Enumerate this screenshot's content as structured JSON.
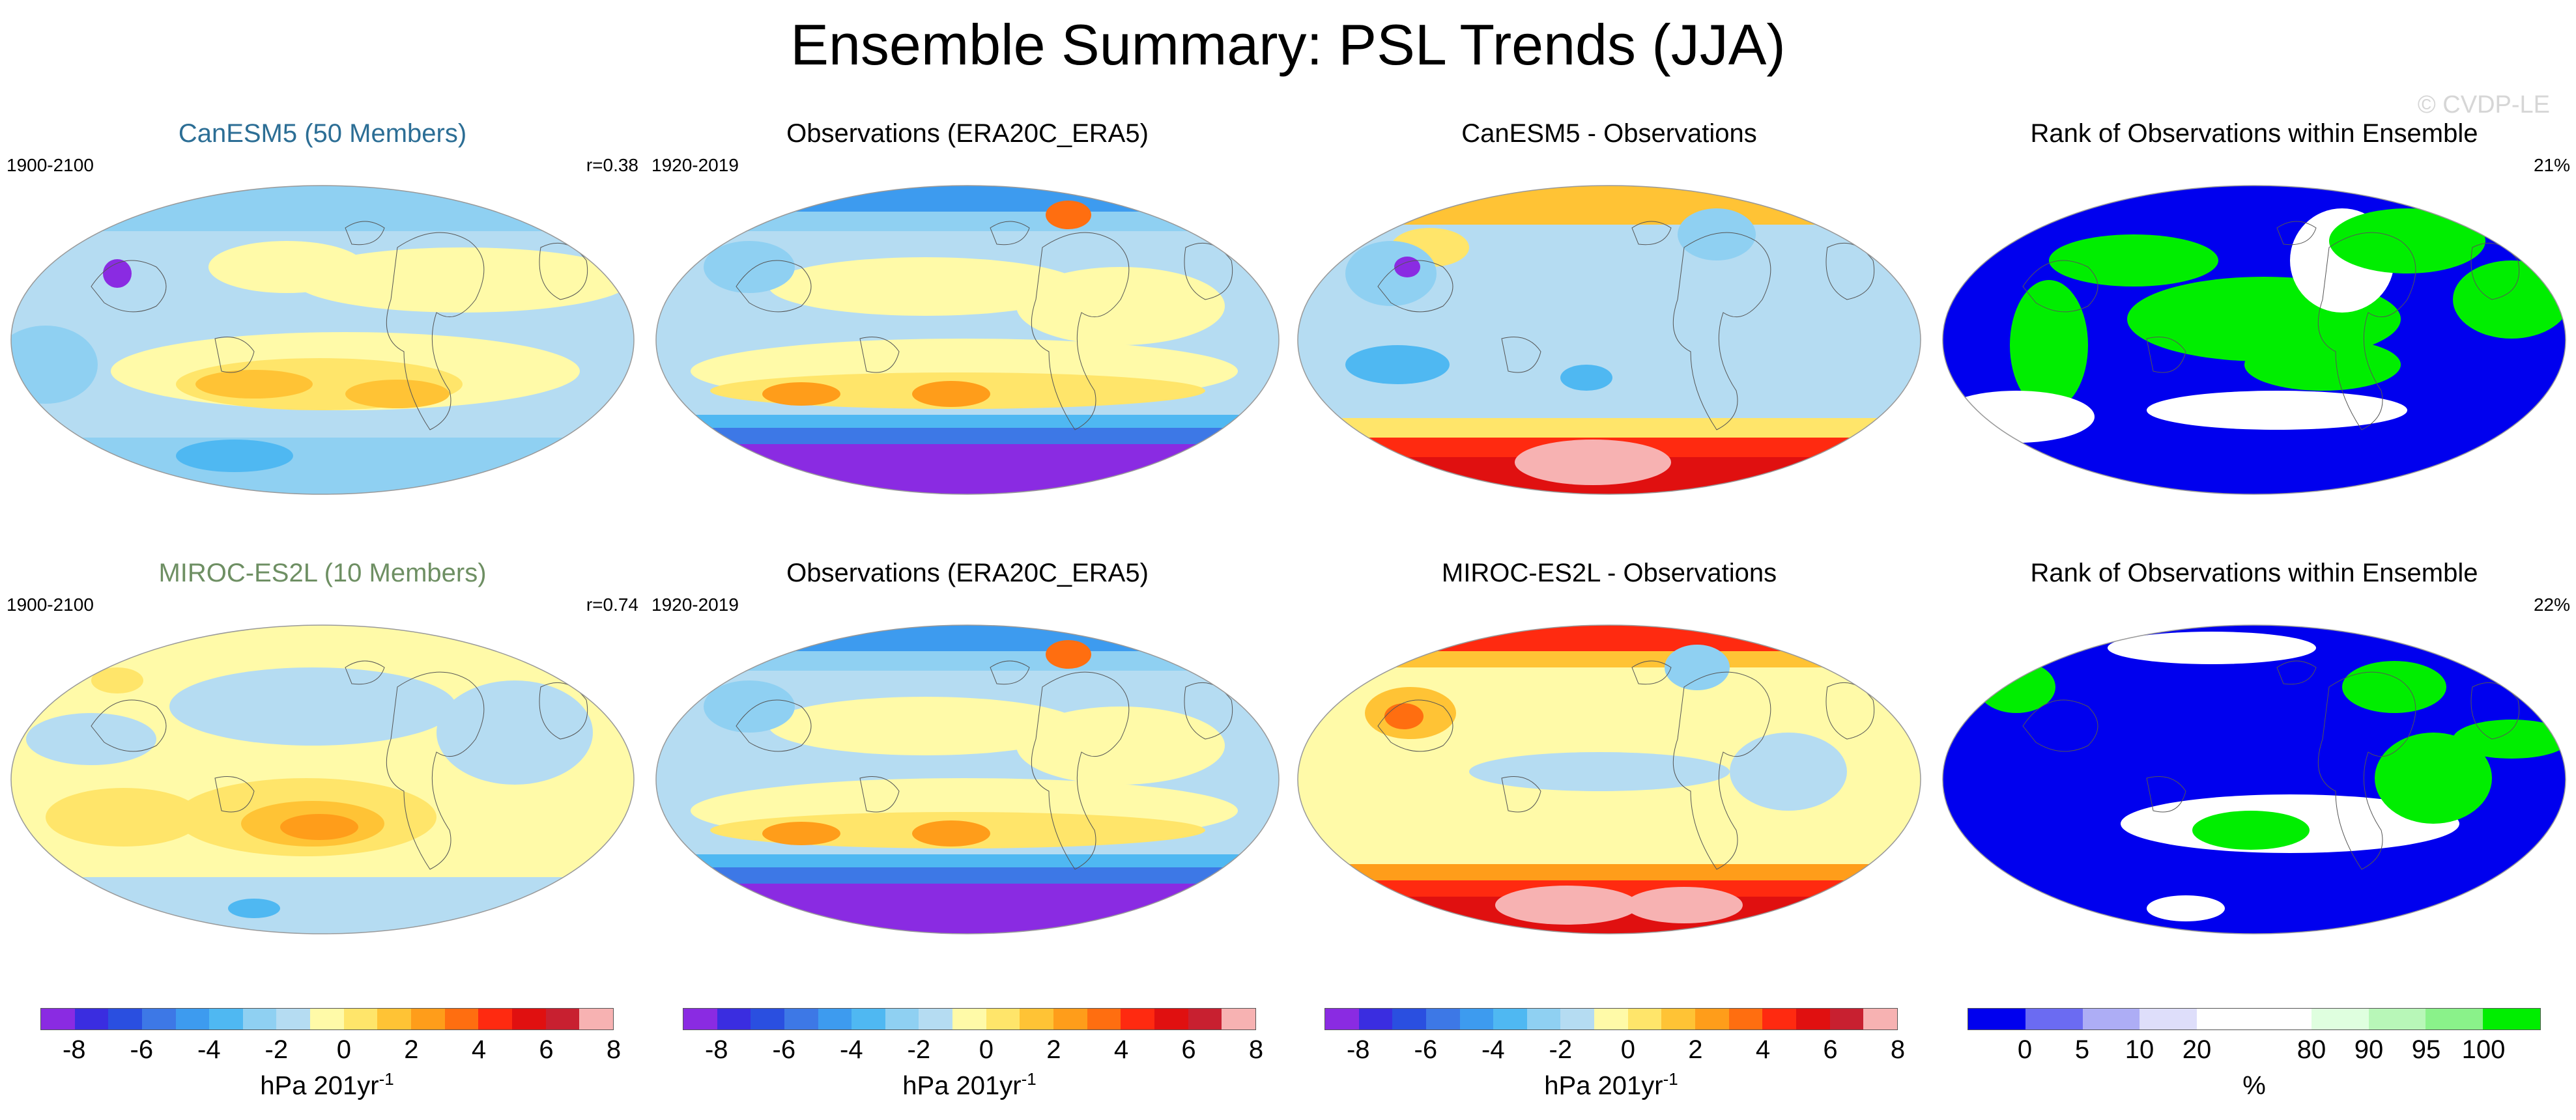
{
  "figure": {
    "title": "Ensemble Summary: PSL Trends (JJA)",
    "watermark": "© CVDP-LE"
  },
  "panels": [
    {
      "title": "CanESM5 (50 Members)",
      "title_color": "#2c6e95",
      "left_label": "1900-2100",
      "right_label": "r=0.38",
      "kind": "model"
    },
    {
      "title": "Observations (ERA20C_ERA5)",
      "title_color": "#000000",
      "left_label": "1920-2019",
      "right_label": "",
      "kind": "obs"
    },
    {
      "title": "CanESM5 - Observations",
      "title_color": "#000000",
      "left_label": "",
      "right_label": "",
      "kind": "diff"
    },
    {
      "title": "Rank of Observations within Ensemble",
      "title_color": "#000000",
      "left_label": "",
      "right_label": "21%",
      "kind": "rank"
    },
    {
      "title": "MIROC-ES2L (10 Members)",
      "title_color": "#6e8f63",
      "left_label": "1900-2100",
      "right_label": "r=0.74",
      "kind": "model"
    },
    {
      "title": "Observations (ERA20C_ERA5)",
      "title_color": "#000000",
      "left_label": "1920-2019",
      "right_label": "",
      "kind": "obs"
    },
    {
      "title": "MIROC-ES2L - Observations",
      "title_color": "#000000",
      "left_label": "",
      "right_label": "",
      "kind": "diff"
    },
    {
      "title": "Rank of Observations within Ensemble",
      "title_color": "#000000",
      "left_label": "",
      "right_label": "22%",
      "kind": "rank"
    }
  ],
  "colorbars": [
    {
      "unit_main": "hPa 201yr",
      "unit_sup": "-1",
      "ticks": [
        "-8",
        "-6",
        "-4",
        "-2",
        "0",
        "2",
        "4",
        "6",
        "8"
      ],
      "colors": [
        "#8a2be2",
        "#3a2de0",
        "#2a4fe0",
        "#3d78e6",
        "#3d9bef",
        "#4fb8f2",
        "#8fd0f2",
        "#b5dcf2",
        "#fffaa8",
        "#ffe56a",
        "#ffc335",
        "#ff9d1a",
        "#ff6e10",
        "#ff2a10",
        "#e01010",
        "#c82030",
        "#f7b2b2"
      ]
    },
    {
      "unit_main": "hPa 201yr",
      "unit_sup": "-1",
      "ticks": [
        "-8",
        "-6",
        "-4",
        "-2",
        "0",
        "2",
        "4",
        "6",
        "8"
      ],
      "colors": [
        "#8a2be2",
        "#3a2de0",
        "#2a4fe0",
        "#3d78e6",
        "#3d9bef",
        "#4fb8f2",
        "#8fd0f2",
        "#b5dcf2",
        "#fffaa8",
        "#ffe56a",
        "#ffc335",
        "#ff9d1a",
        "#ff6e10",
        "#ff2a10",
        "#e01010",
        "#c82030",
        "#f7b2b2"
      ]
    },
    {
      "unit_main": "hPa 201yr",
      "unit_sup": "-1",
      "ticks": [
        "-8",
        "-6",
        "-4",
        "-2",
        "0",
        "2",
        "4",
        "6",
        "8"
      ],
      "colors": [
        "#8a2be2",
        "#3a2de0",
        "#2a4fe0",
        "#3d78e6",
        "#3d9bef",
        "#4fb8f2",
        "#8fd0f2",
        "#b5dcf2",
        "#fffaa8",
        "#ffe56a",
        "#ffc335",
        "#ff9d1a",
        "#ff6e10",
        "#ff2a10",
        "#e01010",
        "#c82030",
        "#f7b2b2"
      ]
    },
    {
      "unit_main": "%",
      "unit_sup": "",
      "ticks": [
        "0",
        "5",
        "10",
        "20",
        "80",
        "90",
        "95",
        "100"
      ],
      "colors": [
        "#0000ee",
        "#6b6bf2",
        "#adadf5",
        "#dedefa",
        "#ffffff",
        "#ffffff",
        "#dfffdf",
        "#b8f7b8",
        "#8af28a",
        "#00ee00"
      ]
    }
  ]
}
